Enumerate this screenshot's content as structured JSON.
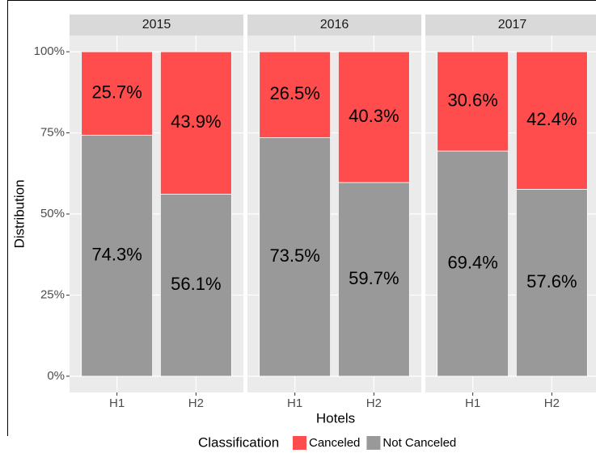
{
  "chart_data": {
    "type": "bar",
    "stacked": true,
    "xlabel": "Hotels",
    "ylabel": "Distribution",
    "legend_title": "Classification",
    "legend_position": "bottom",
    "categories": [
      "H1",
      "H2"
    ],
    "ylim": [
      -5,
      105
    ],
    "yticks": [
      {
        "value": 0,
        "label": "0%"
      },
      {
        "value": 25,
        "label": "25%"
      },
      {
        "value": 50,
        "label": "50%"
      },
      {
        "value": 75,
        "label": "75%"
      },
      {
        "value": 100,
        "label": "100%"
      }
    ],
    "grid": true,
    "facets": [
      {
        "title": "2015",
        "series": [
          {
            "name": "Canceled",
            "color": "#ff4d4d",
            "values": [
              25.7,
              43.9
            ],
            "value_labels": [
              "25.7%",
              "43.9%"
            ]
          },
          {
            "name": "Not Canceled",
            "color": "#999999",
            "values": [
              74.3,
              56.1
            ],
            "value_labels": [
              "74.3%",
              "56.1%"
            ]
          }
        ]
      },
      {
        "title": "2016",
        "series": [
          {
            "name": "Canceled",
            "color": "#ff4d4d",
            "values": [
              26.5,
              40.3
            ],
            "value_labels": [
              "26.5%",
              "40.3%"
            ]
          },
          {
            "name": "Not Canceled",
            "color": "#999999",
            "values": [
              73.5,
              59.7
            ],
            "value_labels": [
              "73.5%",
              "59.7%"
            ]
          }
        ]
      },
      {
        "title": "2017",
        "series": [
          {
            "name": "Canceled",
            "color": "#ff4d4d",
            "values": [
              30.6,
              42.4
            ],
            "value_labels": [
              "30.6%",
              "42.4%"
            ]
          },
          {
            "name": "Not Canceled",
            "color": "#999999",
            "values": [
              69.4,
              57.6
            ],
            "value_labels": [
              "69.4%",
              "57.6%"
            ]
          }
        ]
      }
    ]
  }
}
